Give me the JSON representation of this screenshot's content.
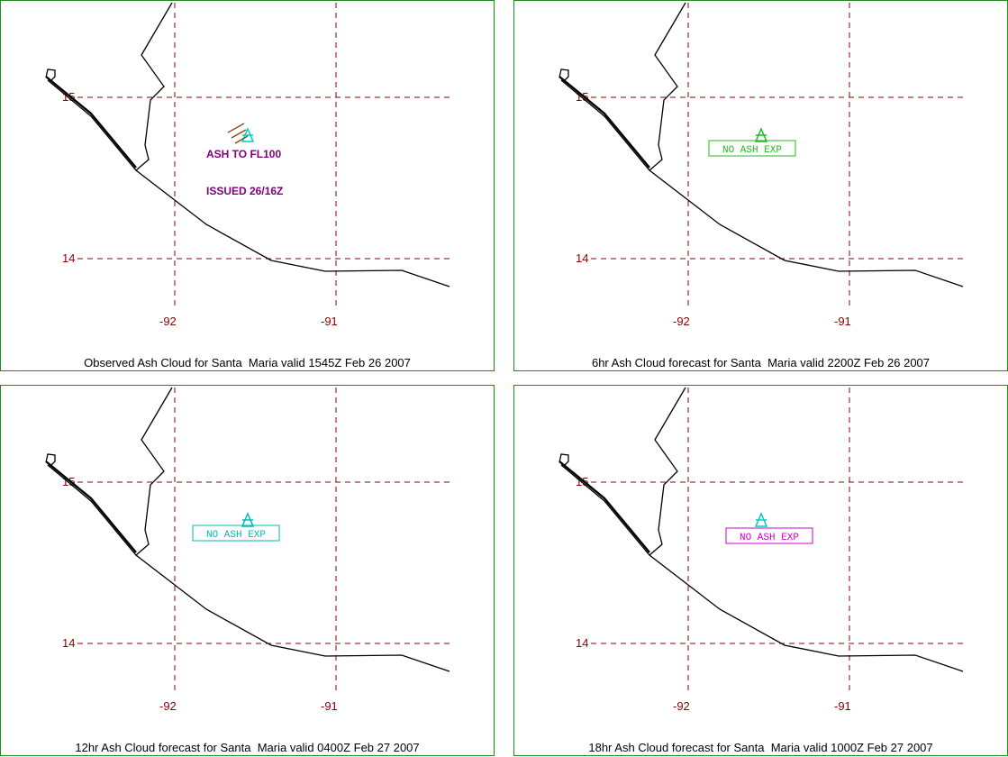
{
  "colors": {
    "frame": "#1f8a1f",
    "grid": "#8b0000",
    "coast": "#000000",
    "observed_text": "#800080",
    "volcano_icon": "#00cccc"
  },
  "grid_labels": {
    "lat_15": "15",
    "lat_14": "14",
    "lon_92": "-92",
    "lon_91": "-91"
  },
  "panels": [
    {
      "caption": "Observed Ash Cloud for Santa  Maria valid 1545Z Feb 26 2007",
      "ash_height": "ASH TO FL100",
      "issued": "ISSUED 26/16Z"
    },
    {
      "caption": "6hr Ash Cloud forecast for Santa  Maria valid 2200Z Feb 26 2007",
      "box_label": "NO ASH EXP",
      "box_color": "#22bb22"
    },
    {
      "caption": "12hr Ash Cloud forecast for Santa  Maria valid 0400Z Feb 27 2007",
      "box_label": "NO ASH EXP",
      "box_color": "#00bbbb"
    },
    {
      "caption": "18hr Ash Cloud forecast for Santa  Maria valid 1000Z Feb 27 2007",
      "box_label": "NO ASH EXP",
      "box_color": "#cc00cc"
    }
  ]
}
